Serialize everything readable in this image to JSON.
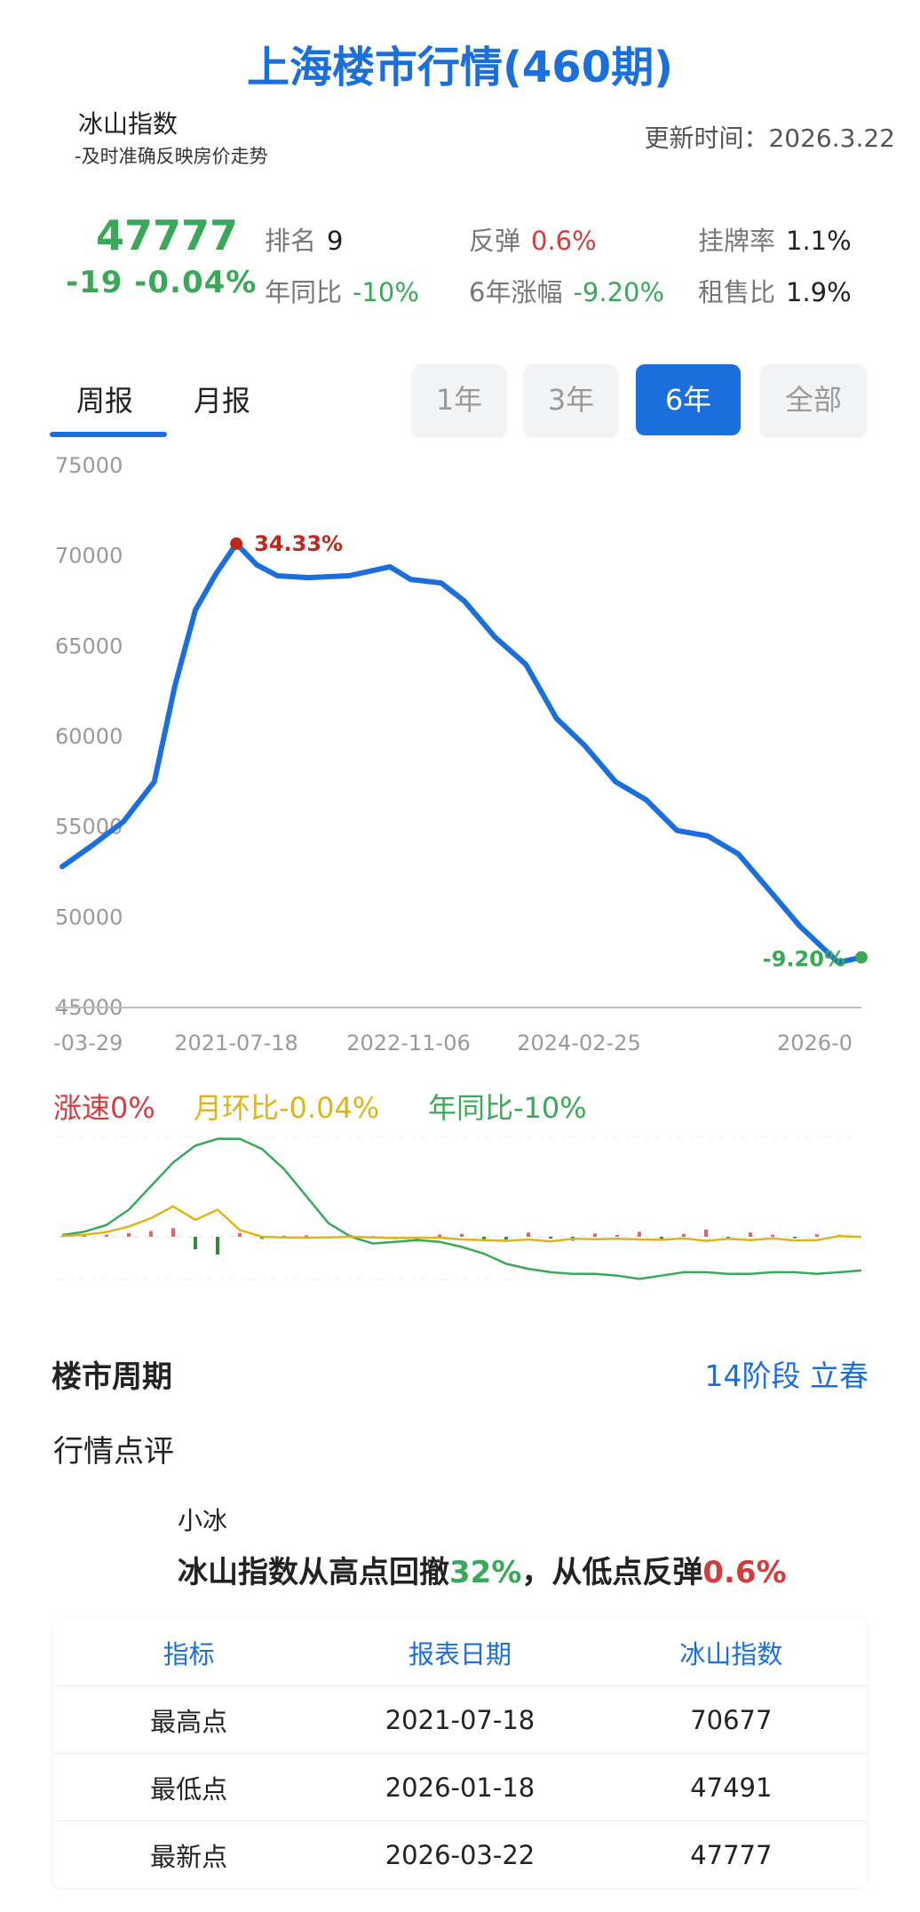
{
  "header": {
    "title": "上海楼市行情(460期)",
    "index_name": "冰山指数",
    "index_sub": "-及时准确反映房价走势",
    "updated": "更新时间：2026.3.22"
  },
  "summary": {
    "value": "47777",
    "change": "-19 -0.04%",
    "rank_label": "排名",
    "rank_value": "9",
    "rebound_label": "反弹",
    "rebound_value": "0.6%",
    "listing_label": "挂牌率",
    "listing_value": "1.1%",
    "yoy_label": "年同比",
    "yoy_value": "-10%",
    "six_label": "6年涨幅",
    "six_value": "-9.20%",
    "rent_label": "租售比",
    "rent_value": "1.9%"
  },
  "tabs": {
    "weekly": "周报",
    "monthly": "月报"
  },
  "ranges": {
    "y1": "1年",
    "y3": "3年",
    "y6": "6年",
    "all": "全部",
    "active": "6年"
  },
  "colors": {
    "accent": "#1a6fdc",
    "up": "#d23c3c",
    "down": "#3aa858",
    "yellow": "#e0b318"
  },
  "chart_data": [
    {
      "type": "line",
      "yticks": [
        "75000",
        "70000",
        "65000",
        "60000",
        "55000",
        "50000",
        "45000"
      ],
      "xticks": [
        "-03-29",
        "2021-07-18",
        "2022-11-06",
        "2024-02-25",
        "2026-0"
      ],
      "ylim": [
        45000,
        75000
      ],
      "grid": false,
      "series": [
        {
          "x": [
            "2020-03-29",
            "2020-06-21",
            "2020-09-13",
            "2020-12-06",
            "2021-01-31",
            "2021-03-28",
            "2021-05-23",
            "2021-07-18",
            "2021-09-12",
            "2021-11-07",
            "2022-01-30",
            "2022-05-22",
            "2022-09-11",
            "2022-11-06",
            "2023-01-29",
            "2023-04-02",
            "2023-06-25",
            "2023-09-17",
            "2023-12-10",
            "2024-02-25",
            "2024-05-19",
            "2024-08-11",
            "2024-11-03",
            "2025-01-26",
            "2025-04-20",
            "2025-07-13",
            "2025-10-05",
            "2026-01-18",
            "2026-03-22"
          ],
          "y": [
            52800,
            54000,
            55300,
            57500,
            62800,
            67000,
            69000,
            70677,
            69500,
            68900,
            68800,
            68900,
            69400,
            68700,
            68500,
            67500,
            65500,
            64000,
            61000,
            59500,
            57500,
            56500,
            54800,
            54500,
            53500,
            51500,
            49500,
            47491,
            47777
          ]
        }
      ],
      "annotations": [
        {
          "label": "34.33%",
          "x": "2021-07-18",
          "y": 70677,
          "color": "#c0281e"
        },
        {
          "label": "-9.20%",
          "x": "2026-03-22",
          "y": 47777,
          "color": "#3aa858"
        }
      ]
    },
    {
      "type": "line",
      "legend": [
        "涨速0%",
        "月环比-0.04%",
        "年同比-10%"
      ],
      "series": [
        {
          "name": "年同比",
          "color": "#3aa858",
          "y": [
            0.5,
            1.5,
            3.5,
            8,
            15,
            22,
            27,
            29,
            29,
            26,
            20,
            12,
            4,
            0,
            -2,
            -1.5,
            -1,
            -1.5,
            -3,
            -5,
            -8,
            -9.5,
            -10.5,
            -11,
            -11,
            -11.5,
            -12.5,
            -11.5,
            -10.5,
            -10.5,
            -11,
            -11,
            -10.5,
            -10.5,
            -11,
            -10.5,
            -10
          ]
        },
        {
          "name": "月环比",
          "color": "#e0b318",
          "y": [
            0.2,
            0.6,
            1.4,
            3,
            5.5,
            9,
            5,
            8,
            2,
            0,
            -0.2,
            -0.3,
            -0.2,
            0,
            -0.2,
            -0.4,
            -0.3,
            -0.3,
            -0.8,
            -1,
            -1.2,
            -0.8,
            -1.4,
            -0.6,
            -0.7,
            -0.6,
            -0.8,
            -0.9,
            -0.5,
            -1.2,
            -0.6,
            -1,
            -0.5,
            -1.1,
            -1,
            0.2,
            -0.04
          ]
        },
        {
          "name": "涨速",
          "color": "#d23c3c",
          "type": "bar",
          "y": [
            0.2,
            0.4,
            0.6,
            1,
            1.6,
            2.4,
            -3.5,
            -5,
            1,
            -0.6,
            0.3,
            0.4,
            -0.3,
            0.5,
            0.2,
            -0.6,
            -1.3,
            0.6,
            0.8,
            -0.8,
            -0.8,
            1.2,
            -0.5,
            -1.1,
            0.9,
            0.5,
            1.4,
            -0.9,
            0.8,
            2,
            -0.7,
            1.2,
            0.6,
            -0.4,
            0.7,
            0.6,
            0
          ]
        }
      ]
    }
  ],
  "cycle": {
    "title": "楼市周期",
    "stage": "14阶段 立春"
  },
  "comment": {
    "title": "行情点评",
    "who": "小冰",
    "p1": "冰山指数从高点回撤",
    "v1": "32%",
    "p2": "，从低点反弹",
    "v2": "0.6%"
  },
  "table": {
    "headers": [
      "指标",
      "报表日期",
      "冰山指数"
    ],
    "rows": [
      [
        "最高点",
        "2021-07-18",
        "70677"
      ],
      [
        "最低点",
        "2026-01-18",
        "47491"
      ],
      [
        "最新点",
        "2026-03-22",
        "47777"
      ]
    ]
  }
}
